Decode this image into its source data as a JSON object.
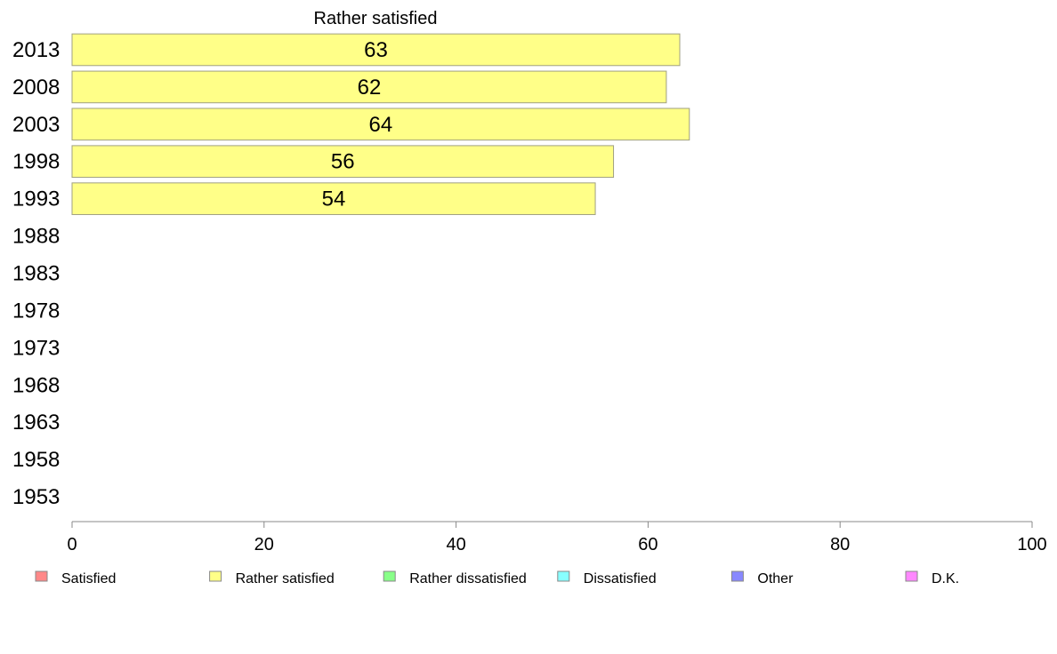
{
  "chart_data": {
    "type": "bar",
    "orientation": "horizontal",
    "title": "Rather satisfied",
    "xlabel": "",
    "ylabel": "",
    "xlim": [
      0,
      100
    ],
    "x_ticks": [
      0,
      20,
      40,
      60,
      80,
      100
    ],
    "grid": false,
    "categories": [
      "2013",
      "2008",
      "2003",
      "1998",
      "1993",
      "1988",
      "1983",
      "1978",
      "1973",
      "1968",
      "1963",
      "1958",
      "1953"
    ],
    "series": [
      {
        "name": "Rather satisfied",
        "color": "#ffff88",
        "values": [
          63.3,
          61.9,
          64.3,
          56.4,
          54.5,
          null,
          null,
          null,
          null,
          null,
          null,
          null,
          null
        ],
        "data_labels": [
          "63",
          "62",
          "64",
          "56",
          "54",
          null,
          null,
          null,
          null,
          null,
          null,
          null,
          null
        ]
      }
    ],
    "legend": {
      "position": "bottom",
      "entries": [
        {
          "label": "Satisfied",
          "color": "#ff8888"
        },
        {
          "label": "Rather satisfied",
          "color": "#ffff88"
        },
        {
          "label": "Rather dissatisfied",
          "color": "#88ff88"
        },
        {
          "label": "Dissatisfied",
          "color": "#88ffff"
        },
        {
          "label": "Other",
          "color": "#8888ff"
        },
        {
          "label": "D.K.",
          "color": "#ff88ff"
        }
      ]
    }
  }
}
